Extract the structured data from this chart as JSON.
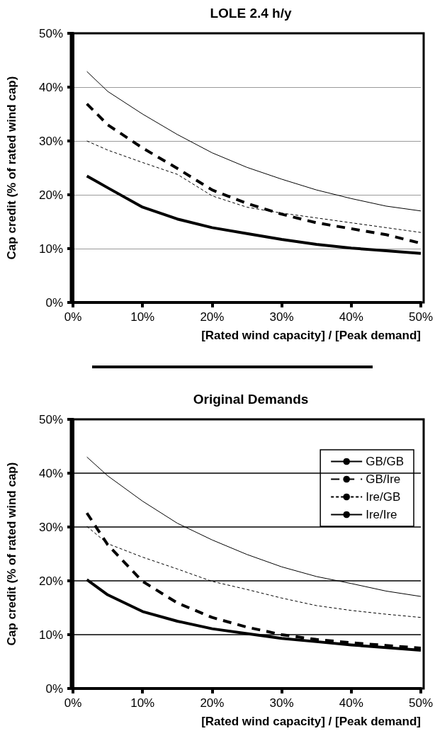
{
  "chart_data": [
    {
      "type": "line",
      "title": "LOLE 2.4 h/y",
      "xlabel": "[Rated wind capacity] / [Peak demand]",
      "ylabel": "Cap credit (% of rated wind cap)",
      "x": [
        2,
        5,
        10,
        15,
        20,
        25,
        30,
        35,
        40,
        45,
        50
      ],
      "series": [
        {
          "color": "#000000",
          "line_style": "solid",
          "values": [
            23.5,
            21.3,
            17.7,
            15.5,
            13.9,
            12.8,
            11.7,
            10.8,
            10.1,
            9.6,
            9.1
          ]
        },
        {
          "color": "#000000",
          "line_style": "dashed",
          "values": [
            36.9,
            33.0,
            28.7,
            24.9,
            20.9,
            18.4,
            16.4,
            14.8,
            13.7,
            12.6,
            11.0
          ]
        },
        {
          "color": "#000000",
          "line_style": "dashed",
          "values": [
            30.0,
            28.3,
            26.0,
            23.8,
            19.8,
            17.7,
            16.6,
            15.7,
            14.8,
            13.9,
            13.0
          ]
        },
        {
          "color": "#000000",
          "line_style": "solid",
          "values": [
            42.9,
            39.2,
            35.0,
            31.2,
            27.8,
            25.1,
            22.9,
            20.9,
            19.3,
            17.9,
            17.0
          ]
        }
      ],
      "xlim": [
        0,
        50
      ],
      "xticks": [
        {
          "value": 0,
          "label": "0%"
        },
        {
          "value": 10,
          "label": "10%"
        },
        {
          "value": 20,
          "label": "20%"
        },
        {
          "value": 30,
          "label": "30%"
        },
        {
          "value": 40,
          "label": "40%"
        },
        {
          "value": 50,
          "label": "50%"
        }
      ],
      "ylim": [
        0,
        50
      ],
      "yticks": [
        {
          "value": 0,
          "label": "0%"
        },
        {
          "value": 10,
          "label": "10%"
        },
        {
          "value": 20,
          "label": "20%"
        },
        {
          "value": 30,
          "label": "30%"
        },
        {
          "value": 40,
          "label": "40%"
        },
        {
          "value": 50,
          "label": "50%"
        }
      ],
      "grid": "y",
      "marker": "none"
    },
    {
      "type": "line",
      "title": "Original Demands",
      "xlabel": "[Rated wind capacity] / [Peak demand]",
      "ylabel": "Cap credit (% of rated wind cap)",
      "x": [
        2,
        5,
        10,
        15,
        20,
        25,
        30,
        35,
        40,
        45,
        50
      ],
      "series": [
        {
          "name": "GB/GB",
          "color": "#000000",
          "line_style": "solid",
          "values": [
            20.2,
            17.4,
            14.3,
            12.5,
            11.1,
            10.2,
            9.3,
            8.7,
            8.1,
            7.6,
            7.1
          ]
        },
        {
          "name": "GB/Ire",
          "color": "#000000",
          "line_style": "dashed",
          "values": [
            32.6,
            26.7,
            19.9,
            15.9,
            13.2,
            11.4,
            10.0,
            9.1,
            8.5,
            8.0,
            7.5
          ]
        },
        {
          "name": "Ire/GB",
          "color": "#000000",
          "line_style": "dashed",
          "values": [
            30.1,
            26.9,
            24.4,
            22.2,
            19.9,
            18.4,
            16.8,
            15.4,
            14.5,
            13.8,
            13.2
          ]
        },
        {
          "name": "Ire/Ire",
          "color": "#000000",
          "line_style": "solid",
          "values": [
            43.0,
            39.5,
            34.8,
            30.7,
            27.6,
            24.9,
            22.6,
            20.8,
            19.5,
            18.1,
            17.1
          ]
        }
      ],
      "xlim": [
        0,
        50
      ],
      "xticks": [
        {
          "value": 0,
          "label": "0%"
        },
        {
          "value": 10,
          "label": "10%"
        },
        {
          "value": 20,
          "label": "20%"
        },
        {
          "value": 30,
          "label": "30%"
        },
        {
          "value": 40,
          "label": "40%"
        },
        {
          "value": 50,
          "label": "50%"
        }
      ],
      "ylim": [
        0,
        50
      ],
      "yticks": [
        {
          "value": 0,
          "label": "0%"
        },
        {
          "value": 10,
          "label": "10%"
        },
        {
          "value": 20,
          "label": "20%"
        },
        {
          "value": 30,
          "label": "30%"
        },
        {
          "value": 40,
          "label": "40%"
        },
        {
          "value": 50,
          "label": "50%"
        }
      ],
      "grid": "y",
      "legend": "top right",
      "marker": "none"
    }
  ]
}
